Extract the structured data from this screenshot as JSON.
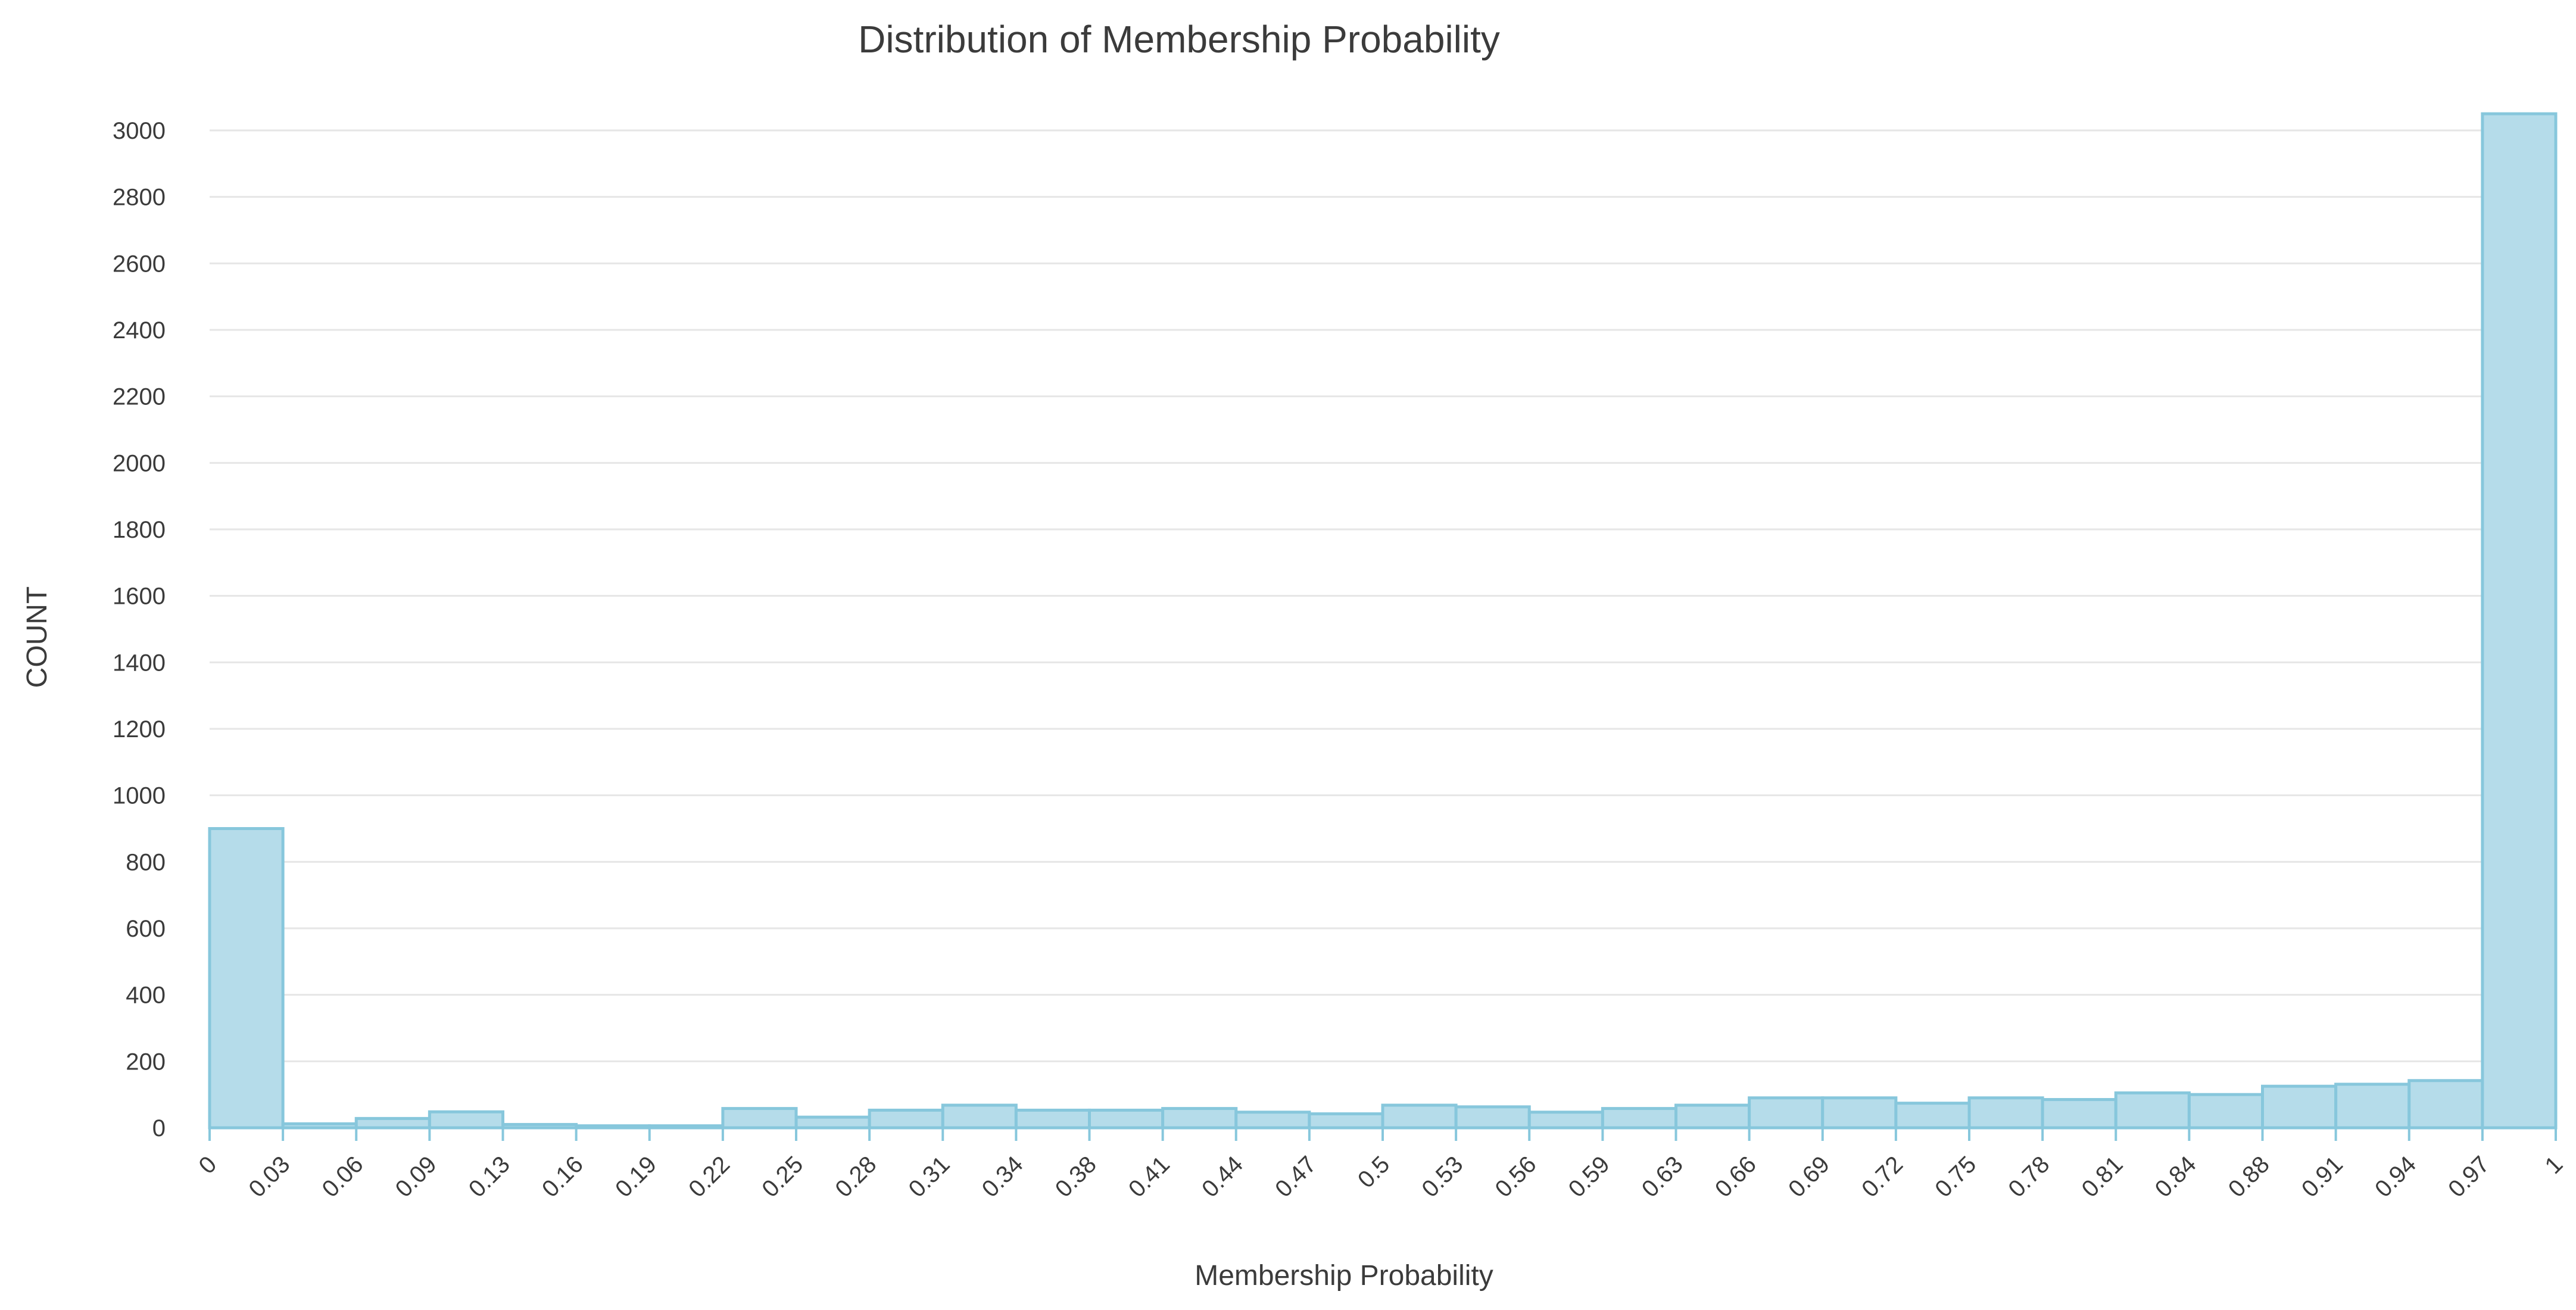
{
  "chart_data": {
    "type": "bar",
    "title": "Distribution of Membership Probability",
    "xlabel": "Membership Probability",
    "ylabel": "COUNT",
    "ylim": [
      0,
      3000
    ],
    "yticks": [
      "0",
      "200",
      "400",
      "600",
      "800",
      "1000",
      "1200",
      "1400",
      "1600",
      "1800",
      "2000",
      "2200",
      "2400",
      "2600",
      "2800",
      "3000"
    ],
    "xticks": [
      "0",
      "0.03",
      "0.06",
      "0.09",
      "0.13",
      "0.16",
      "0.19",
      "0.22",
      "0.25",
      "0.28",
      "0.31",
      "0.34",
      "0.38",
      "0.41",
      "0.44",
      "0.47",
      "0.5",
      "0.53",
      "0.56",
      "0.59",
      "0.63",
      "0.66",
      "0.69",
      "0.72",
      "0.75",
      "0.78",
      "0.81",
      "0.84",
      "0.88",
      "0.91",
      "0.94",
      "0.97",
      "1"
    ],
    "bins": [
      {
        "from": 0,
        "to": 0.03,
        "count": 900
      },
      {
        "from": 0.03,
        "to": 0.06,
        "count": 12
      },
      {
        "from": 0.06,
        "to": 0.09,
        "count": 28
      },
      {
        "from": 0.09,
        "to": 0.13,
        "count": 48
      },
      {
        "from": 0.13,
        "to": 0.16,
        "count": 10
      },
      {
        "from": 0.16,
        "to": 0.19,
        "count": 6
      },
      {
        "from": 0.19,
        "to": 0.22,
        "count": 6
      },
      {
        "from": 0.22,
        "to": 0.25,
        "count": 58
      },
      {
        "from": 0.25,
        "to": 0.28,
        "count": 32
      },
      {
        "from": 0.28,
        "to": 0.31,
        "count": 53
      },
      {
        "from": 0.31,
        "to": 0.34,
        "count": 68
      },
      {
        "from": 0.34,
        "to": 0.38,
        "count": 53
      },
      {
        "from": 0.38,
        "to": 0.41,
        "count": 53
      },
      {
        "from": 0.41,
        "to": 0.44,
        "count": 58
      },
      {
        "from": 0.44,
        "to": 0.47,
        "count": 47
      },
      {
        "from": 0.47,
        "to": 0.5,
        "count": 42
      },
      {
        "from": 0.5,
        "to": 0.53,
        "count": 68
      },
      {
        "from": 0.53,
        "to": 0.56,
        "count": 63
      },
      {
        "from": 0.56,
        "to": 0.59,
        "count": 47
      },
      {
        "from": 0.59,
        "to": 0.63,
        "count": 58
      },
      {
        "from": 0.63,
        "to": 0.66,
        "count": 68
      },
      {
        "from": 0.66,
        "to": 0.69,
        "count": 90
      },
      {
        "from": 0.69,
        "to": 0.72,
        "count": 90
      },
      {
        "from": 0.72,
        "to": 0.75,
        "count": 74
      },
      {
        "from": 0.75,
        "to": 0.78,
        "count": 90
      },
      {
        "from": 0.78,
        "to": 0.81,
        "count": 85
      },
      {
        "from": 0.81,
        "to": 0.84,
        "count": 105
      },
      {
        "from": 0.84,
        "to": 0.88,
        "count": 100
      },
      {
        "from": 0.88,
        "to": 0.91,
        "count": 125
      },
      {
        "from": 0.91,
        "to": 0.94,
        "count": 131
      },
      {
        "from": 0.94,
        "to": 0.97,
        "count": 142
      },
      {
        "from": 0.97,
        "to": 1,
        "count": 3050
      }
    ],
    "grid": true,
    "legend": "none",
    "colors": {
      "bar_fill": "#b5dcea",
      "bar_stroke": "#87c7dc",
      "grid": "#e6e6e6",
      "text": "#3b3b3b"
    }
  }
}
